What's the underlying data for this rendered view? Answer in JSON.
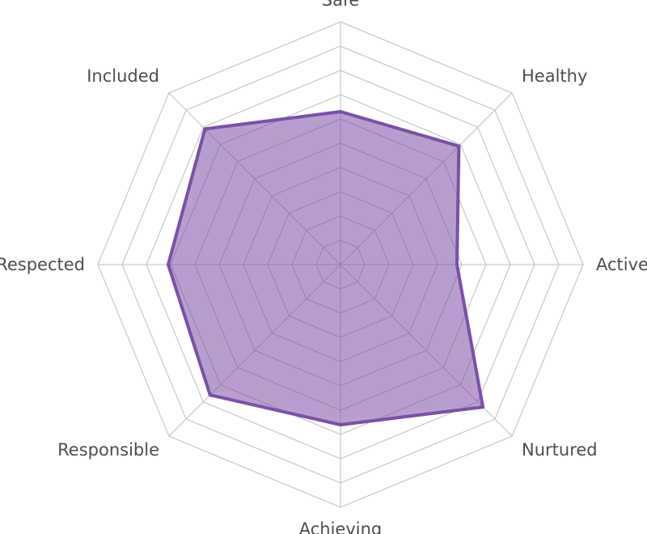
{
  "chart_data": {
    "type": "radar",
    "categories": [
      "Safe",
      "Healthy",
      "Active",
      "Nurtured",
      "Achieving",
      "Responsible",
      "Respected",
      "Included"
    ],
    "series": [
      {
        "values": [
          6.3,
          6.9,
          4.8,
          8.3,
          6.6,
          7.6,
          7.1,
          7.9
        ]
      }
    ],
    "range": [
      0,
      10
    ],
    "grid_levels": 10,
    "grid": true,
    "colors": {
      "series": "#7b4fa8",
      "grid": "#bdbdbd",
      "label": "#4d4d4d"
    }
  }
}
